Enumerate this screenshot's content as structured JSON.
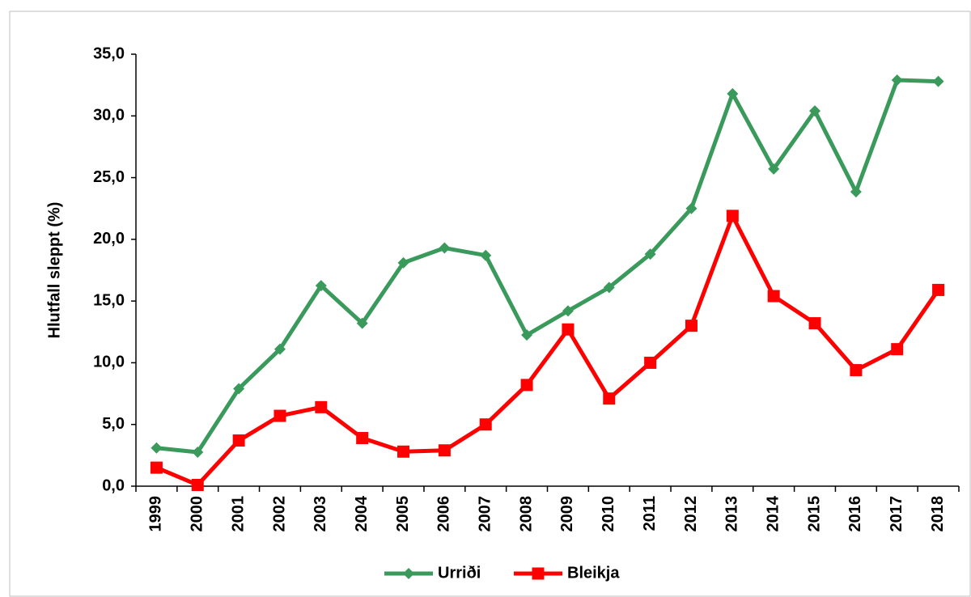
{
  "chart_data": {
    "type": "line",
    "y_label": "Hlutfall sleppt (%)",
    "categories": [
      "1999",
      "2000",
      "2001",
      "2002",
      "2003",
      "2004",
      "2005",
      "2006",
      "2007",
      "2008",
      "2009",
      "2010",
      "2011",
      "2012",
      "2013",
      "2014",
      "2015",
      "2016",
      "2017",
      "2018"
    ],
    "series": [
      {
        "name": "Urriði",
        "color": "#3a9a5c",
        "marker": "diamond",
        "values": [
          3.1,
          2.75,
          7.9,
          11.1,
          16.25,
          13.2,
          18.1,
          19.3,
          18.7,
          12.25,
          14.2,
          16.1,
          18.8,
          22.5,
          31.8,
          25.7,
          30.4,
          23.85,
          32.9,
          32.8
        ]
      },
      {
        "name": "Bleikja",
        "color": "#ff0000",
        "marker": "square",
        "values": [
          1.5,
          0.1,
          3.7,
          5.7,
          6.4,
          3.9,
          2.8,
          2.9,
          5.0,
          8.2,
          12.7,
          7.1,
          10.0,
          13.0,
          21.9,
          15.4,
          13.2,
          9.4,
          11.1,
          15.9
        ]
      }
    ],
    "ylim": [
      0,
      35
    ],
    "yticks": [
      {
        "value": 0,
        "label": "0,0"
      },
      {
        "value": 5,
        "label": "5,0"
      },
      {
        "value": 10,
        "label": "10,0"
      },
      {
        "value": 15,
        "label": "15,0"
      },
      {
        "value": 20,
        "label": "20,0"
      },
      {
        "value": 25,
        "label": "25,0"
      },
      {
        "value": 30,
        "label": "30,0"
      },
      {
        "value": 35,
        "label": "35,0"
      }
    ],
    "grid": false,
    "legend": "bottom"
  }
}
